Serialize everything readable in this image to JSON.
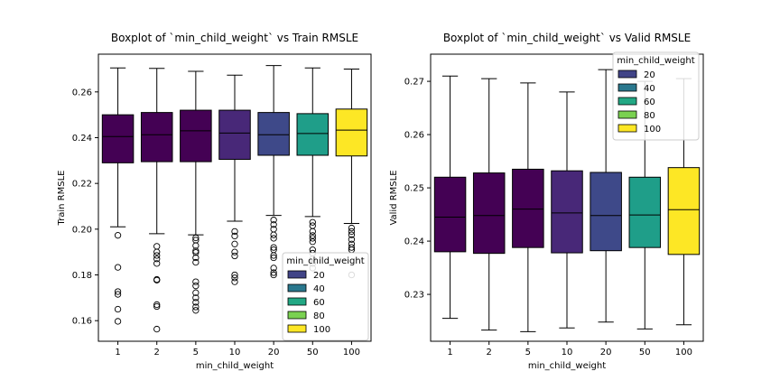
{
  "chart_data": [
    {
      "type": "box",
      "title": "Boxplot of `min_child_weight` vs Train RMSLE",
      "xlabel": "min_child_weight",
      "ylabel": "Train RMSLE",
      "categories": [
        "1",
        "2",
        "5",
        "10",
        "20",
        "50",
        "100"
      ],
      "ylim": [
        0.151,
        0.2765
      ],
      "yticks": [
        "0.16",
        "0.18",
        "0.20",
        "0.22",
        "0.24",
        "0.26"
      ],
      "ytick_values": [
        0.16,
        0.18,
        0.2,
        0.22,
        0.24,
        0.26
      ],
      "boxes": [
        {
          "category": "1",
          "whislo": 0.201,
          "q1": 0.229,
          "med": 0.2405,
          "q3": 0.25,
          "whishi": 0.2705,
          "fliers": [
            0.1973,
            0.1833,
            0.1727,
            0.1715,
            0.165,
            0.1597
          ],
          "color": "#440154"
        },
        {
          "category": "2",
          "whislo": 0.198,
          "q1": 0.2295,
          "med": 0.2413,
          "q3": 0.251,
          "whishi": 0.2703,
          "fliers": [
            0.1925,
            0.19,
            0.1885,
            0.187,
            0.185,
            0.178,
            0.1777,
            0.167,
            0.1662,
            0.1563
          ],
          "color": "#440154"
        },
        {
          "category": "5",
          "whislo": 0.1975,
          "q1": 0.2295,
          "med": 0.243,
          "q3": 0.252,
          "whishi": 0.269,
          "fliers": [
            0.1962,
            0.1952,
            0.1928,
            0.1905,
            0.1898,
            0.1875,
            0.1855,
            0.177,
            0.1752,
            0.1722,
            0.17,
            0.168,
            0.166,
            0.1645
          ],
          "color": "#440154"
        },
        {
          "category": "10",
          "whislo": 0.2035,
          "q1": 0.2305,
          "med": 0.242,
          "q3": 0.252,
          "whishi": 0.2673,
          "fliers": [
            0.199,
            0.197,
            0.1935,
            0.19,
            0.1883,
            0.18,
            0.1787,
            0.177
          ],
          "color": "#482878"
        },
        {
          "category": "20",
          "whislo": 0.206,
          "q1": 0.2323,
          "med": 0.2413,
          "q3": 0.251,
          "whishi": 0.2715,
          "fliers": [
            0.204,
            0.202,
            0.2,
            0.1975,
            0.196,
            0.192,
            0.191,
            0.1885,
            0.1875,
            0.183,
            0.181,
            0.18
          ],
          "color": "#3e4989"
        },
        {
          "category": "50",
          "whislo": 0.2055,
          "q1": 0.2323,
          "med": 0.2418,
          "q3": 0.2505,
          "whishi": 0.2705,
          "fliers": [
            0.203,
            0.2015,
            0.199,
            0.1972,
            0.196,
            0.1945,
            0.191,
            0.1895,
            0.187,
            0.185,
            0.183
          ],
          "color": "#1f9e89"
        },
        {
          "category": "100",
          "whislo": 0.2025,
          "q1": 0.232,
          "med": 0.2433,
          "q3": 0.2525,
          "whishi": 0.27,
          "fliers": [
            0.2005,
            0.199,
            0.1975,
            0.1955,
            0.1935,
            0.192,
            0.191,
            0.18
          ],
          "color": "#fde725"
        }
      ],
      "legend": {
        "title": "min_child_weight",
        "placement": "lower-right",
        "entries": [
          {
            "label": "20",
            "color": "#414487"
          },
          {
            "label": "40",
            "color": "#2a788e"
          },
          {
            "label": "60",
            "color": "#22a884"
          },
          {
            "label": "80",
            "color": "#7ad151"
          },
          {
            "label": "100",
            "color": "#fde725"
          }
        ]
      }
    },
    {
      "type": "box",
      "title": "Boxplot of `min_child_weight` vs Valid RMSLE",
      "xlabel": "min_child_weight",
      "ylabel": "Valid RMSLE",
      "categories": [
        "1",
        "2",
        "5",
        "10",
        "20",
        "50",
        "100"
      ],
      "ylim": [
        0.2212,
        0.2751
      ],
      "yticks": [
        "0.23",
        "0.24",
        "0.25",
        "0.26",
        "0.27"
      ],
      "ytick_values": [
        0.23,
        0.24,
        0.25,
        0.26,
        0.27
      ],
      "boxes": [
        {
          "category": "1",
          "whislo": 0.2255,
          "q1": 0.238,
          "med": 0.2445,
          "q3": 0.252,
          "whishi": 0.271,
          "fliers": [],
          "color": "#440154"
        },
        {
          "category": "2",
          "whislo": 0.2233,
          "q1": 0.2377,
          "med": 0.2448,
          "q3": 0.2528,
          "whishi": 0.2705,
          "fliers": [],
          "color": "#440154"
        },
        {
          "category": "5",
          "whislo": 0.223,
          "q1": 0.2388,
          "med": 0.246,
          "q3": 0.2535,
          "whishi": 0.2697,
          "fliers": [],
          "color": "#440154"
        },
        {
          "category": "10",
          "whislo": 0.2237,
          "q1": 0.2378,
          "med": 0.2453,
          "q3": 0.2532,
          "whishi": 0.268,
          "fliers": [],
          "color": "#482878"
        },
        {
          "category": "20",
          "whislo": 0.2248,
          "q1": 0.2382,
          "med": 0.2448,
          "q3": 0.2529,
          "whishi": 0.2722,
          "fliers": [],
          "color": "#3e4989"
        },
        {
          "category": "50",
          "whislo": 0.2235,
          "q1": 0.2388,
          "med": 0.2449,
          "q3": 0.252,
          "whishi": 0.27,
          "fliers": [],
          "color": "#1f9e89"
        },
        {
          "category": "100",
          "whislo": 0.2243,
          "q1": 0.2375,
          "med": 0.2459,
          "q3": 0.2538,
          "whishi": 0.2705,
          "fliers": [],
          "color": "#fde725"
        }
      ],
      "legend": {
        "title": "min_child_weight",
        "placement": "upper-right",
        "entries": [
          {
            "label": "20",
            "color": "#414487"
          },
          {
            "label": "40",
            "color": "#2a788e"
          },
          {
            "label": "60",
            "color": "#22a884"
          },
          {
            "label": "80",
            "color": "#7ad151"
          },
          {
            "label": "100",
            "color": "#fde725"
          }
        ]
      }
    }
  ]
}
